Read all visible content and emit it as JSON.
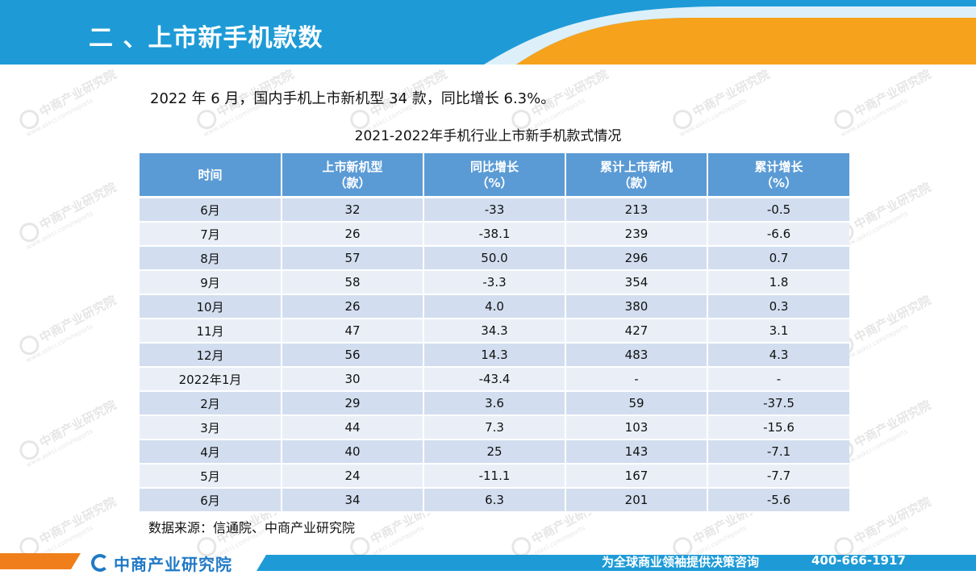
{
  "header": {
    "title": "二 、上市新手机款数",
    "colors": {
      "primary": "#1e9bd7",
      "accent": "#f6a21c"
    }
  },
  "summary": "2022 年 6 月，国内手机上市新机型 34 款，同比增长 6.3%。",
  "table": {
    "title": "2021-2022年手机行业上市新手机款式情况",
    "headers": [
      [
        "时间",
        ""
      ],
      [
        "上市新机型",
        "（款）"
      ],
      [
        "同比增长",
        "（%）"
      ],
      [
        "累计上市新机",
        "（款）"
      ],
      [
        "累计增长",
        "（%）"
      ]
    ],
    "rows": [
      [
        "6月",
        "32",
        "-33",
        "213",
        "-0.5"
      ],
      [
        "7月",
        "26",
        "-38.1",
        "239",
        "-6.6"
      ],
      [
        "8月",
        "57",
        "50.0",
        "296",
        "0.7"
      ],
      [
        "9月",
        "58",
        "-3.3",
        "354",
        "1.8"
      ],
      [
        "10月",
        "26",
        "4.0",
        "380",
        "0.3"
      ],
      [
        "11月",
        "47",
        "34.3",
        "427",
        "3.1"
      ],
      [
        "12月",
        "56",
        "14.3",
        "483",
        "4.3"
      ],
      [
        "2022年1月",
        "30",
        "-43.4",
        "-",
        "-"
      ],
      [
        "2月",
        "29",
        "3.6",
        "59",
        "-37.5"
      ],
      [
        "3月",
        "44",
        "7.3",
        "103",
        "-15.6"
      ],
      [
        "4月",
        "40",
        "25",
        "143",
        "-7.1"
      ],
      [
        "5月",
        "24",
        "-11.1",
        "167",
        "-7.7"
      ],
      [
        "6月",
        "34",
        "6.3",
        "201",
        "-5.6"
      ]
    ]
  },
  "source": "数据来源：信通院、中商产业研究院",
  "watermark": {
    "brand": "中商产业研究院",
    "url": "www.askci.com/reports"
  },
  "footer": {
    "logo_text": "中商产业研究院",
    "slogan": "为全球商业领袖提供决策咨询",
    "hotline": "400-666-1917"
  }
}
